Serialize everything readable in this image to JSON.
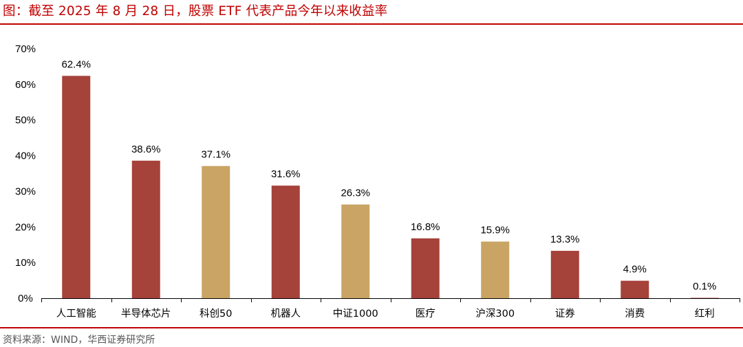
{
  "figure": {
    "title": "图：截至 2025 年 8 月 28 日，股票 ETF 代表产品今年以来收益率",
    "source": "资料来源：WIND，华西证券研究所",
    "accent_color": "#c00000"
  },
  "chart_data": {
    "type": "bar",
    "categories": [
      "人工智能",
      "半导体芯片",
      "科创50",
      "机器人",
      "中证1000",
      "医疗",
      "沪深300",
      "证券",
      "消费",
      "红利"
    ],
    "values": [
      62.4,
      38.6,
      37.1,
      31.6,
      26.3,
      16.8,
      15.9,
      13.3,
      4.9,
      0.1
    ],
    "value_labels": [
      "62.4%",
      "38.6%",
      "37.1%",
      "31.6%",
      "26.3%",
      "16.8%",
      "15.9%",
      "13.3%",
      "4.9%",
      "0.1%"
    ],
    "bar_colors": [
      "#a5423a",
      "#a5423a",
      "#c9a464",
      "#a5423a",
      "#c9a464",
      "#a5423a",
      "#c9a464",
      "#a5423a",
      "#a5423a",
      "#a5423a"
    ],
    "ylim": [
      0,
      70
    ],
    "yticks": [
      0,
      10,
      20,
      30,
      40,
      50,
      60,
      70
    ],
    "ytick_labels": [
      "0%",
      "10%",
      "20%",
      "30%",
      "40%",
      "50%",
      "60%",
      "70%"
    ],
    "xlabel": "",
    "ylabel": "",
    "grid": false,
    "legend": "none"
  }
}
